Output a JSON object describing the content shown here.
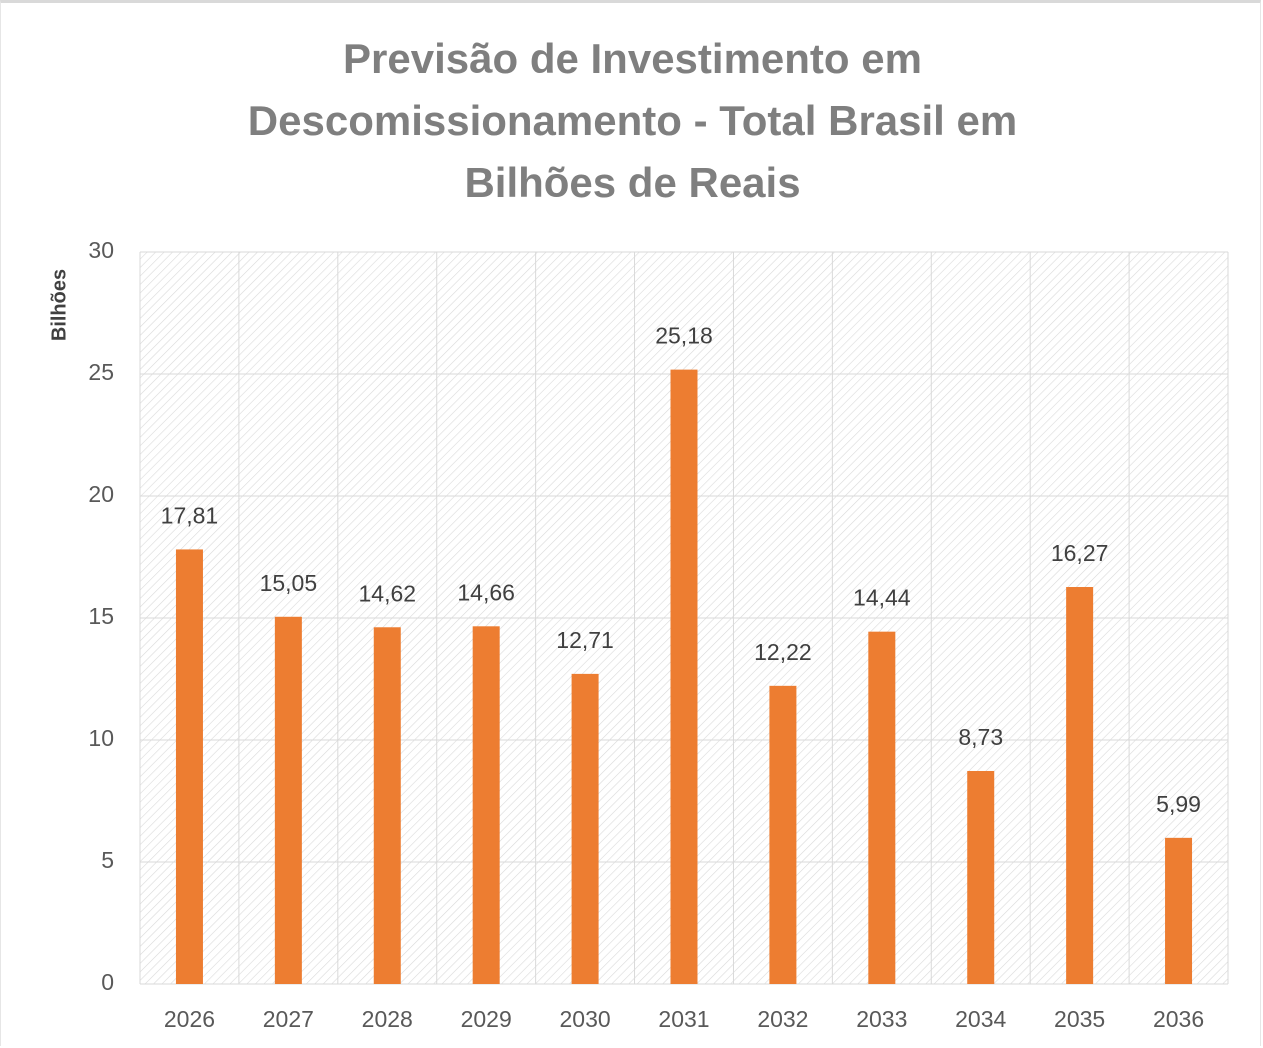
{
  "chart_data": {
    "type": "bar",
    "title": "Previsão de Investimento em Descomissionamento - Total Brasil em Bilhões de Reais",
    "y_label": "Bilhões",
    "categories": [
      "2026",
      "2027",
      "2028",
      "2029",
      "2030",
      "2031",
      "2032",
      "2033",
      "2034",
      "2035",
      "2036"
    ],
    "values": [
      17.81,
      15.05,
      14.62,
      14.66,
      12.71,
      25.18,
      12.22,
      14.44,
      8.73,
      16.27,
      5.99
    ],
    "value_labels": [
      "17,81",
      "15,05",
      "14,62",
      "14,66",
      "12,71",
      "25,18",
      "12,22",
      "14,44",
      "8,73",
      "16,27",
      "5,99"
    ],
    "color": "#ed7d31",
    "ylim": [
      0,
      30
    ],
    "yticks": [
      0,
      5,
      10,
      15,
      20,
      25,
      30
    ],
    "grid": true
  }
}
